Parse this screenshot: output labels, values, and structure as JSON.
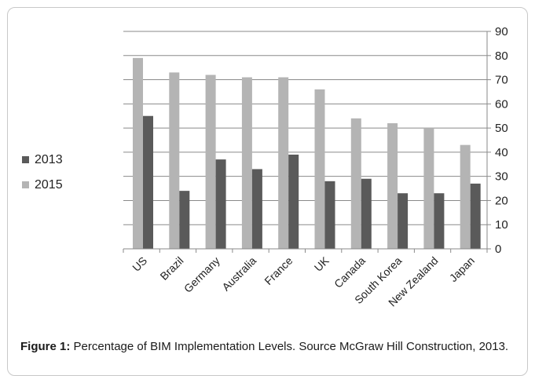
{
  "chart_data": {
    "type": "bar",
    "categories": [
      "US",
      "Brazil",
      "Germany",
      "Australia",
      "France",
      "UK",
      "Canada",
      "South Korea",
      "New Zealand",
      "Japan"
    ],
    "series": [
      {
        "name": "2013",
        "color": "#5a5a5a",
        "values": [
          55,
          24,
          37,
          33,
          39,
          28,
          29,
          23,
          23,
          27
        ]
      },
      {
        "name": "2015",
        "color": "#b4b4b4",
        "values": [
          79,
          73,
          72,
          71,
          71,
          66,
          54,
          52,
          50,
          43
        ]
      }
    ],
    "ylim": [
      0,
      90
    ],
    "yticks": [
      0,
      10,
      20,
      30,
      40,
      50,
      60,
      70,
      80,
      90
    ],
    "y_axis_side": "right",
    "grid": true,
    "legend_position": "left",
    "xlabel": "",
    "ylabel": ""
  },
  "caption": {
    "label": "Figure 1:",
    "text": "Percentage of BIM Implementation Levels. Source McGraw Hill Construction, 2013."
  }
}
